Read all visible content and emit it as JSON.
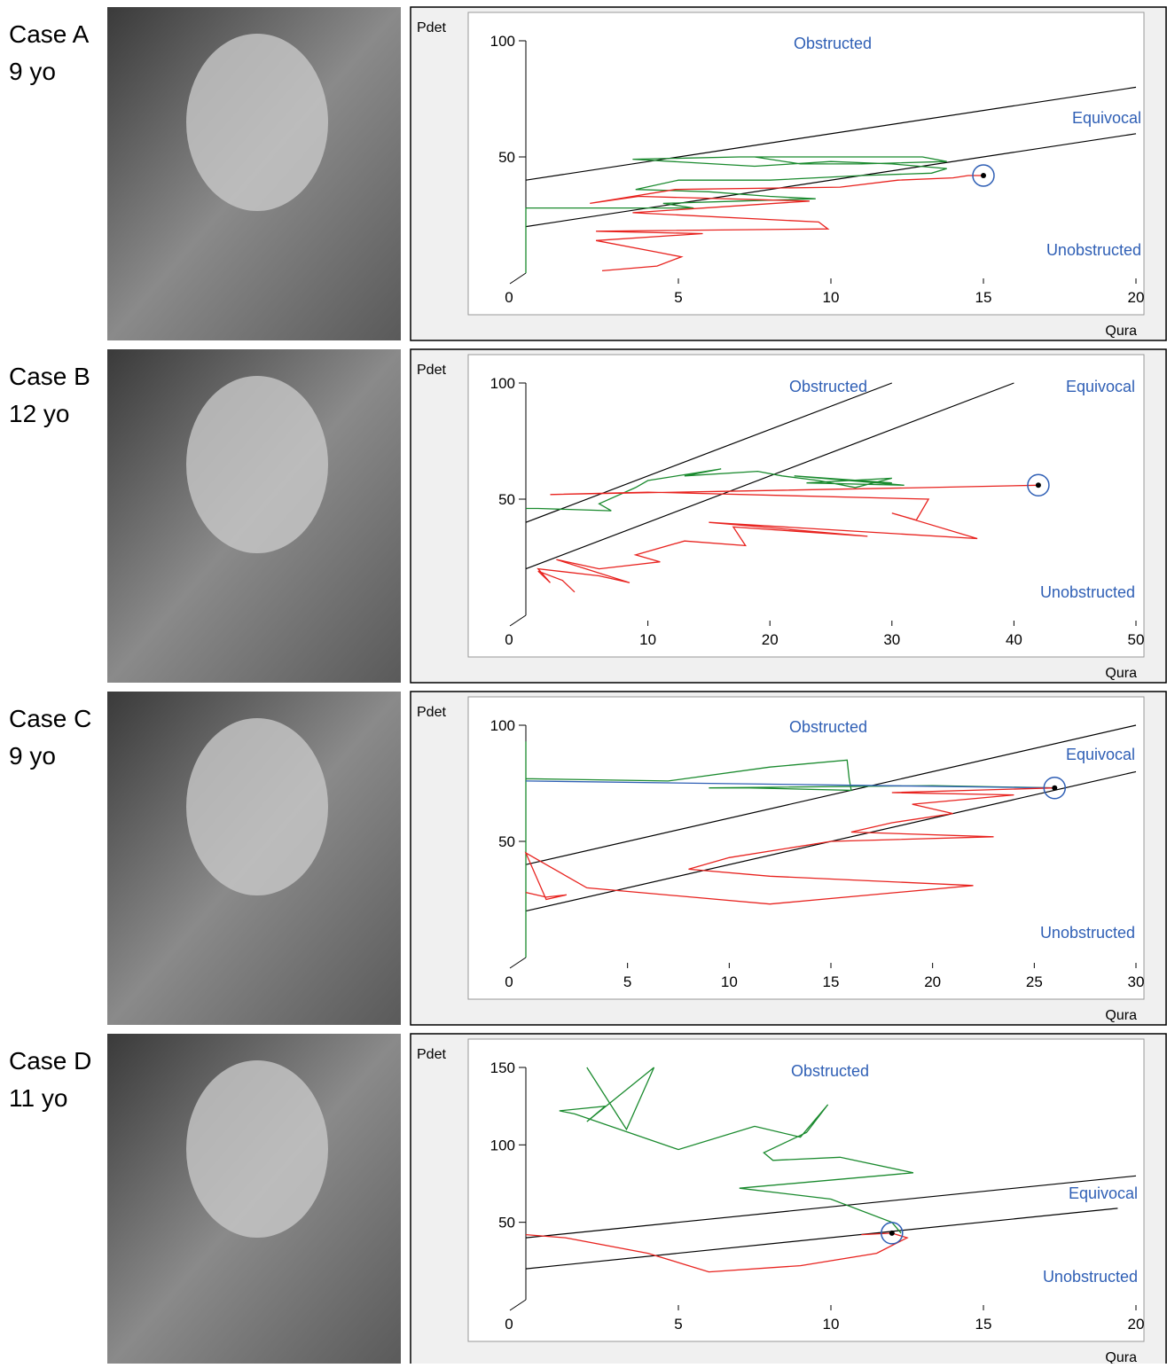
{
  "cases": [
    {
      "label": "Case A",
      "age": "9 yo"
    },
    {
      "label": "Case B",
      "age": "12 yo"
    },
    {
      "label": "Case C",
      "age": "9 yo"
    },
    {
      "label": "Case D",
      "age": "11 yo"
    }
  ],
  "chart_data": [
    {
      "type": "line",
      "y_label": "Pdet",
      "x_label": "Qura",
      "annotations": [
        "Obstructed",
        "Equivocal",
        "Unobstructed"
      ],
      "xlim": [
        0,
        20
      ],
      "ylim": [
        0,
        100
      ],
      "xticks": [
        0,
        5,
        10,
        15,
        20
      ],
      "yticks": [
        50,
        100
      ],
      "boundaries": [
        {
          "x": [
            0,
            20
          ],
          "values": [
            40,
            80
          ]
        },
        {
          "x": [
            0,
            20
          ],
          "values": [
            20,
            60
          ]
        }
      ],
      "series": [
        {
          "color": "#1a8a2e",
          "x": [
            0,
            0,
            0,
            5.5,
            4.5,
            7,
            9.5,
            8,
            6,
            3.6,
            5,
            8,
            11,
            13.3,
            13.8,
            12,
            10,
            7.5,
            3.5,
            7,
            13,
            13.8,
            11,
            9,
            7.5
          ],
          "values": [
            0,
            18,
            28,
            28,
            30,
            31,
            32,
            33,
            35,
            36,
            40,
            40,
            42,
            43,
            45,
            47,
            48,
            46,
            49,
            50,
            50,
            48,
            47,
            47,
            50
          ]
        },
        {
          "color": "#e8231f",
          "x": [
            2.5,
            4.3,
            5.1,
            4.3,
            2.3,
            5.8,
            2.3,
            9.9,
            9.6,
            3.5,
            9.3,
            3.7,
            2.1,
            4.9,
            10.3,
            12.2,
            14,
            14.5,
            15
          ],
          "values": [
            1,
            3,
            7,
            9,
            14,
            17,
            18,
            19,
            22,
            26,
            31,
            33,
            30,
            36,
            37,
            40,
            41,
            42,
            42
          ]
        }
      ],
      "peak": {
        "x": 15,
        "y": 42
      }
    },
    {
      "type": "line",
      "y_label": "Pdet",
      "x_label": "Qura",
      "annotations": [
        "Obstructed",
        "Equivocal",
        "Unobstructed"
      ],
      "xlim": [
        0,
        50
      ],
      "ylim": [
        0,
        100
      ],
      "xticks": [
        0,
        10,
        20,
        30,
        40,
        50
      ],
      "yticks": [
        50,
        100
      ],
      "boundaries": [
        {
          "x": [
            0,
            30
          ],
          "values": [
            40,
            100
          ]
        },
        {
          "x": [
            0,
            40
          ],
          "values": [
            20,
            100
          ]
        }
      ],
      "series": [
        {
          "color": "#1a8a2e",
          "x": [
            0,
            1,
            7,
            6,
            9,
            10,
            16,
            13,
            19,
            21,
            24,
            27,
            30,
            23,
            31,
            22,
            30
          ],
          "values": [
            46,
            46,
            45,
            48,
            55,
            58,
            63,
            60,
            62,
            60,
            58,
            55,
            59,
            57,
            56,
            60,
            57
          ]
        },
        {
          "color": "#e8231f",
          "x": [
            4,
            3,
            1,
            2,
            1,
            6,
            8.5,
            2.5,
            6,
            11,
            9,
            13,
            18,
            17,
            28,
            15,
            37,
            30,
            32,
            33,
            10,
            2,
            33,
            42
          ],
          "values": [
            10,
            15,
            19,
            14,
            20,
            17,
            14,
            24,
            20,
            23,
            26,
            32,
            30,
            38,
            34,
            40,
            33,
            44,
            41,
            50,
            53,
            52,
            55,
            56
          ]
        }
      ],
      "peak": {
        "x": 42,
        "y": 56
      }
    },
    {
      "type": "line",
      "y_label": "Pdet",
      "x_label": "Qura",
      "annotations": [
        "Obstructed",
        "Equivocal",
        "Unobstructed"
      ],
      "xlim": [
        0,
        30
      ],
      "ylim": [
        0,
        100
      ],
      "xticks": [
        0,
        5,
        10,
        15,
        20,
        25,
        30
      ],
      "yticks": [
        50,
        100
      ],
      "boundaries": [
        {
          "x": [
            0,
            30
          ],
          "values": [
            40,
            100
          ]
        },
        {
          "x": [
            0,
            30
          ],
          "values": [
            20,
            80
          ]
        }
      ],
      "series": [
        {
          "color": "#1a8a2e",
          "x": [
            0,
            0,
            0,
            0,
            7,
            12,
            15.8,
            15.9,
            16,
            11,
            9,
            20,
            26
          ],
          "values": [
            0,
            60,
            93,
            77,
            76,
            82,
            85,
            77,
            72,
            73,
            73,
            74,
            73
          ]
        },
        {
          "color": "#2f5fb5",
          "x": [
            0,
            26
          ],
          "values": [
            76,
            73
          ]
        },
        {
          "color": "#e8231f",
          "x": [
            0,
            1,
            2,
            1,
            0,
            1,
            3,
            12,
            22,
            12,
            8,
            10,
            15,
            23,
            16,
            18,
            21,
            19,
            24,
            18,
            26
          ],
          "values": [
            28,
            26,
            27,
            25,
            45,
            40,
            30,
            23,
            31,
            35,
            38,
            43,
            50,
            52,
            54,
            58,
            62,
            66,
            70,
            71,
            73
          ]
        }
      ],
      "peak": {
        "x": 26,
        "y": 73
      }
    },
    {
      "type": "line",
      "y_label": "Pdet",
      "x_label": "Qura",
      "annotations": [
        "Obstructed",
        "Equivocal",
        "Unobstructed"
      ],
      "xlim": [
        0,
        20
      ],
      "ylim": [
        0,
        150
      ],
      "xticks": [
        0,
        5,
        10,
        15,
        20
      ],
      "yticks": [
        50,
        100,
        150
      ],
      "boundaries": [
        {
          "x": [
            0,
            20
          ],
          "values": [
            40,
            80
          ]
        },
        {
          "x": [
            0,
            19.4
          ],
          "values": [
            20,
            59
          ]
        }
      ],
      "series": [
        {
          "color": "#1a8a2e",
          "x": [
            2,
            3.3,
            4.2,
            2,
            2.6,
            1.1,
            1.6,
            5,
            7.5,
            9,
            9.9,
            9.2,
            7.8,
            8.1,
            10.3,
            12.7,
            7,
            10,
            12,
            12.3
          ],
          "values": [
            150,
            110,
            150,
            115,
            125,
            122,
            120,
            97,
            112,
            105,
            126,
            108,
            95,
            90,
            92,
            82,
            72,
            65,
            50,
            43
          ]
        },
        {
          "color": "#e8231f",
          "x": [
            0,
            1.3,
            4,
            6,
            9,
            11.5,
            12.5,
            12,
            11
          ],
          "values": [
            42,
            40,
            30,
            18,
            22,
            30,
            40,
            43,
            42
          ]
        }
      ],
      "peak": {
        "x": 12,
        "y": 43
      }
    }
  ]
}
